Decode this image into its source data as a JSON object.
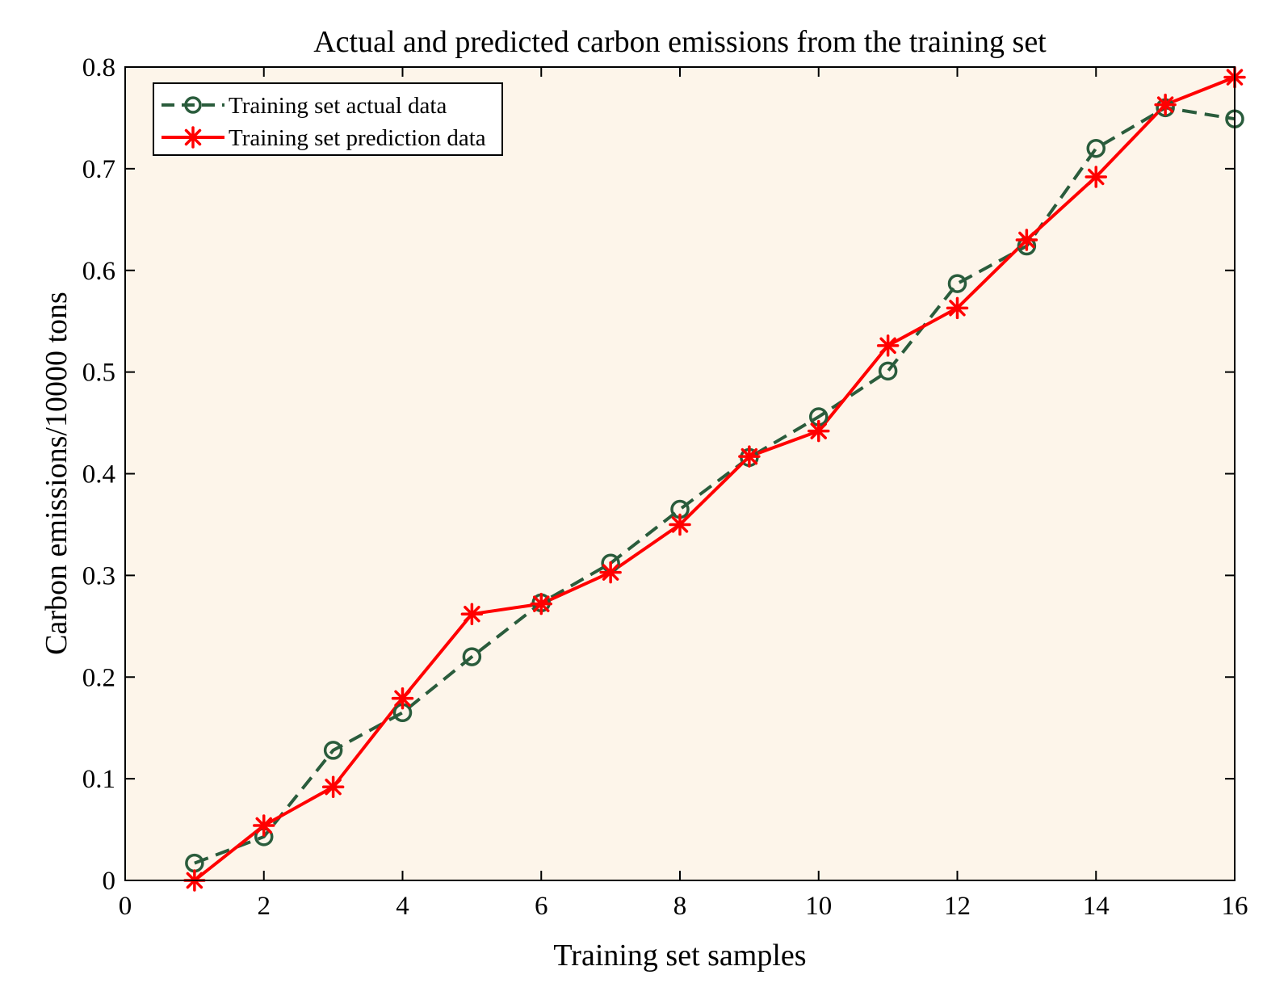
{
  "chart_data": {
    "type": "line",
    "title": "Actual and predicted carbon emissions from the training set",
    "xlabel": "Training set samples",
    "ylabel": "Carbon emissions/10000 tons",
    "xlim": [
      0,
      16
    ],
    "ylim": [
      0,
      0.8
    ],
    "xticks": [
      0,
      2,
      4,
      6,
      8,
      10,
      12,
      14,
      16
    ],
    "yticks": [
      0,
      0.1,
      0.2,
      0.3,
      0.4,
      0.5,
      0.6,
      0.7,
      0.8
    ],
    "xtick_labels": [
      "0",
      "2",
      "4",
      "6",
      "8",
      "10",
      "12",
      "14",
      "16"
    ],
    "ytick_labels": [
      "0",
      "0.1",
      "0.2",
      "0.3",
      "0.4",
      "0.5",
      "0.6",
      "0.7",
      "0.8"
    ],
    "legend_position": "top-left",
    "grid": false,
    "plot_background": "#fdf5ea",
    "series": [
      {
        "name": "Training set actual data",
        "color": "#2a5c3c",
        "line_style": "dashed",
        "marker": "circle",
        "x": [
          1,
          2,
          3,
          4,
          5,
          6,
          7,
          8,
          9,
          10,
          11,
          12,
          13,
          14,
          15,
          16
        ],
        "values": [
          0.017,
          0.043,
          0.128,
          0.165,
          0.22,
          0.273,
          0.312,
          0.365,
          0.416,
          0.456,
          0.501,
          0.587,
          0.624,
          0.72,
          0.76,
          0.749
        ]
      },
      {
        "name": "Training set prediction data",
        "color": "#ff0000",
        "line_style": "solid",
        "marker": "asterisk",
        "x": [
          1,
          2,
          3,
          4,
          5,
          6,
          7,
          8,
          9,
          10,
          11,
          12,
          13,
          14,
          15,
          16
        ],
        "values": [
          0.0,
          0.054,
          0.092,
          0.179,
          0.262,
          0.272,
          0.303,
          0.35,
          0.417,
          0.442,
          0.526,
          0.563,
          0.63,
          0.692,
          0.763,
          0.79
        ]
      }
    ]
  }
}
